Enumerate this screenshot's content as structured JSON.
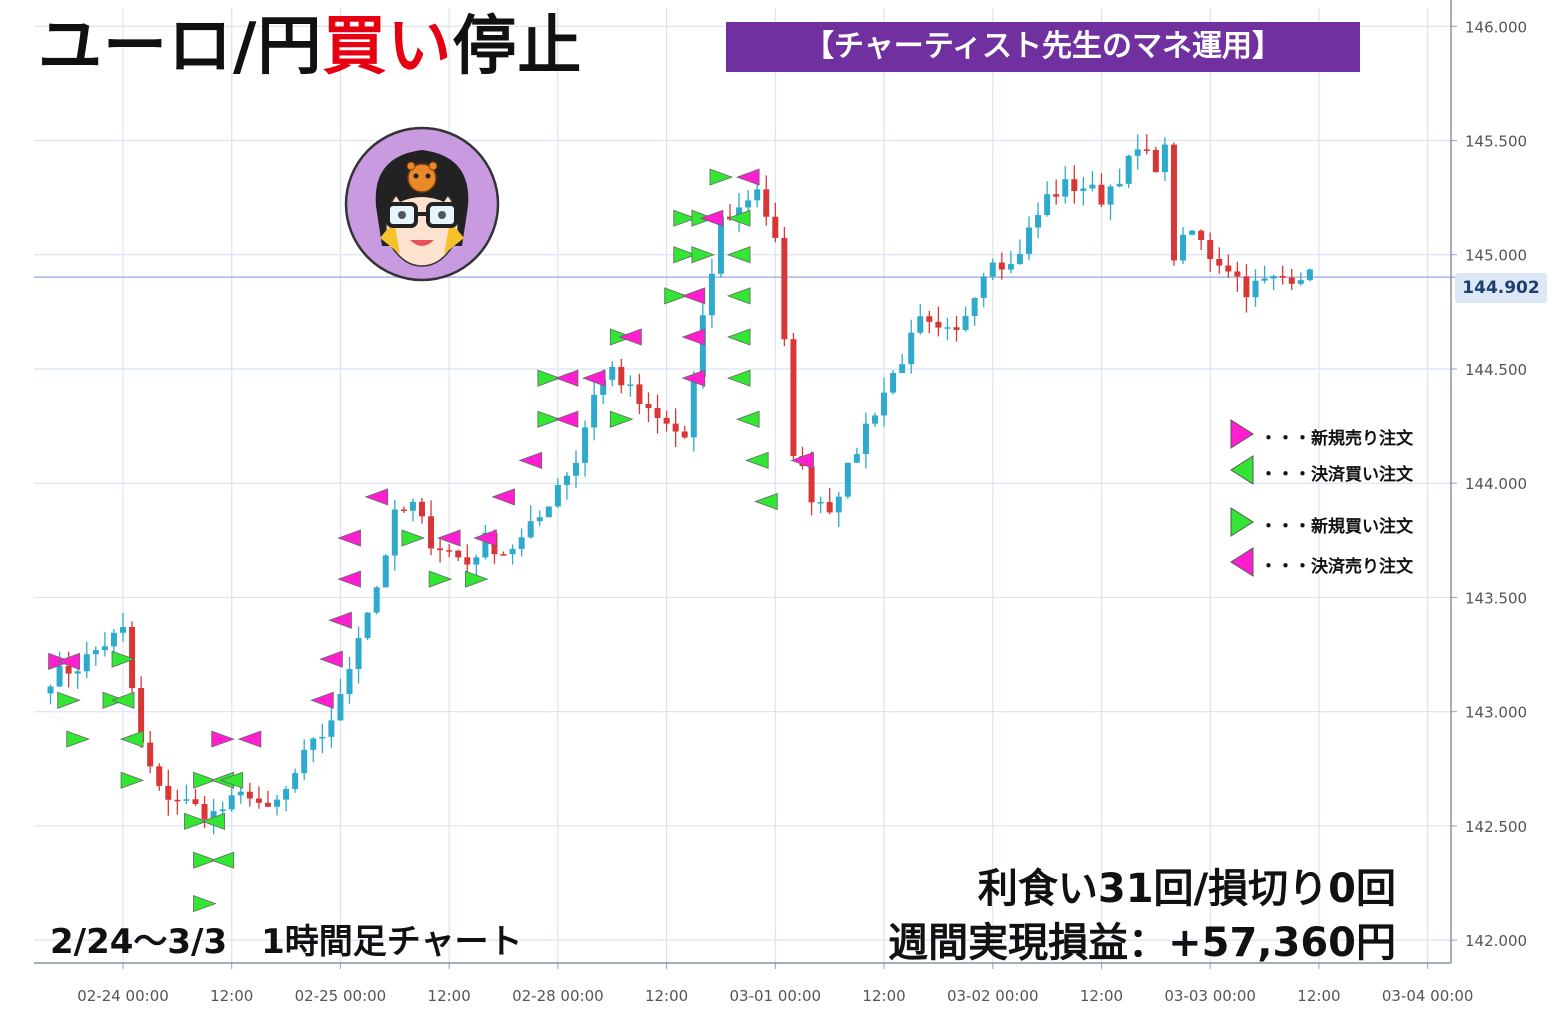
{
  "title": {
    "pair": "ユーロ/円",
    "action": "買い",
    "suffix": "停止"
  },
  "banner": "【チャーティスト先生のマネ運用】",
  "current_price": "144.902",
  "legend": [
    {
      "label": "・・・新規売り注文",
      "color": "#ff1fd0",
      "direction": "right"
    },
    {
      "label": "・・・決済買い注文",
      "color": "#33e633",
      "direction": "left"
    },
    {
      "label": "・・・新規買い注文",
      "color": "#33e633",
      "direction": "right"
    },
    {
      "label": "・・・決済売り注文",
      "color": "#ff1fd0",
      "direction": "left"
    }
  ],
  "stats": {
    "line1": "利食い31回/損切り0回",
    "line2": "週間実現損益：+57,360円"
  },
  "period": "2/24～3/3　1時間足チャート",
  "colors": {
    "up": "#2eaacc",
    "down": "#d93636",
    "grid": "#dbe3f3",
    "banner": "#7030a0",
    "accent": "#e60012"
  },
  "chart_data": {
    "type": "candlestick",
    "interval": "1h",
    "y_ticks": [
      "142.000",
      "142.500",
      "143.000",
      "143.500",
      "144.000",
      "144.500",
      "145.000",
      "145.500",
      "146.000"
    ],
    "ylim": [
      141.9,
      146.08
    ],
    "x_ticks": [
      "02-24 00:00",
      "12:00",
      "02-25 00:00",
      "12:00",
      "02-28 00:00",
      "12:00",
      "03-01 00:00",
      "12:00",
      "03-02 00:00",
      "12:00",
      "03-03 00:00",
      "12:00",
      "03-04 00:00"
    ],
    "bars_per_tick": 12,
    "start_index": -8,
    "current_price": 144.902,
    "close_path": [
      [
        -8,
        143.15
      ],
      [
        -5,
        143.2
      ],
      [
        -2,
        143.3
      ],
      [
        0,
        143.35
      ],
      [
        2,
        142.85
      ],
      [
        4,
        142.65
      ],
      [
        6,
        142.62
      ],
      [
        8,
        142.58
      ],
      [
        10,
        142.55
      ],
      [
        12,
        142.6
      ],
      [
        14,
        142.65
      ],
      [
        16,
        142.55
      ],
      [
        18,
        142.65
      ],
      [
        20,
        142.8
      ],
      [
        22,
        142.9
      ],
      [
        24,
        143.05
      ],
      [
        26,
        143.35
      ],
      [
        28,
        143.55
      ],
      [
        30,
        143.85
      ],
      [
        32,
        143.9
      ],
      [
        34,
        143.75
      ],
      [
        36,
        143.7
      ],
      [
        38,
        143.65
      ],
      [
        40,
        143.75
      ],
      [
        42,
        143.7
      ],
      [
        44,
        143.75
      ],
      [
        46,
        143.85
      ],
      [
        48,
        144.0
      ],
      [
        50,
        144.1
      ],
      [
        52,
        144.4
      ],
      [
        54,
        144.5
      ],
      [
        56,
        144.4
      ],
      [
        58,
        144.3
      ],
      [
        60,
        144.25
      ],
      [
        62,
        144.2
      ],
      [
        64,
        144.7
      ],
      [
        66,
        145.15
      ],
      [
        68,
        145.2
      ],
      [
        70,
        145.3
      ],
      [
        72,
        145.05
      ],
      [
        74,
        144.15
      ],
      [
        76,
        143.95
      ],
      [
        78,
        143.9
      ],
      [
        80,
        144.05
      ],
      [
        82,
        144.25
      ],
      [
        84,
        144.4
      ],
      [
        86,
        144.55
      ],
      [
        88,
        144.7
      ],
      [
        90,
        144.65
      ],
      [
        92,
        144.65
      ],
      [
        94,
        144.85
      ],
      [
        96,
        145.0
      ],
      [
        98,
        144.95
      ],
      [
        100,
        145.1
      ],
      [
        102,
        145.25
      ],
      [
        104,
        145.3
      ],
      [
        106,
        145.3
      ],
      [
        108,
        145.25
      ],
      [
        110,
        145.35
      ],
      [
        112,
        145.45
      ],
      [
        114,
        145.4
      ],
      [
        115,
        145.45
      ],
      [
        116,
        145.0
      ],
      [
        118,
        145.1
      ],
      [
        120,
        145.0
      ],
      [
        122,
        144.95
      ],
      [
        124,
        144.85
      ],
      [
        126,
        144.88
      ],
      [
        128,
        144.9
      ],
      [
        130,
        144.92
      ],
      [
        131,
        144.902
      ]
    ],
    "orders": [
      {
        "bar": -7,
        "price": 143.22,
        "type": "sell_new"
      },
      {
        "bar": -6,
        "price": 143.22,
        "type": "sell_close"
      },
      {
        "bar": -6,
        "price": 143.05,
        "type": "buy_new"
      },
      {
        "bar": -5,
        "price": 142.88,
        "type": "buy_new"
      },
      {
        "bar": -1,
        "price": 143.05,
        "type": "buy_new"
      },
      {
        "bar": 0,
        "price": 143.23,
        "type": "buy_new"
      },
      {
        "bar": 0,
        "price": 143.05,
        "type": "buy_close"
      },
      {
        "bar": 1,
        "price": 142.88,
        "type": "buy_close"
      },
      {
        "bar": 1,
        "price": 142.7,
        "type": "buy_new"
      },
      {
        "bar": 8,
        "price": 142.52,
        "type": "buy_new"
      },
      {
        "bar": 9,
        "price": 142.7,
        "type": "buy_new"
      },
      {
        "bar": 9,
        "price": 142.35,
        "type": "buy_new"
      },
      {
        "bar": 9,
        "price": 142.16,
        "type": "buy_new"
      },
      {
        "bar": 11,
        "price": 142.88,
        "type": "sell_new"
      },
      {
        "bar": 10,
        "price": 142.52,
        "type": "buy_close"
      },
      {
        "bar": 11,
        "price": 142.7,
        "type": "buy_close"
      },
      {
        "bar": 11,
        "price": 142.35,
        "type": "buy_close"
      },
      {
        "bar": 12,
        "price": 142.7,
        "type": "buy_close"
      },
      {
        "bar": 14,
        "price": 142.88,
        "type": "sell_close"
      },
      {
        "bar": 22,
        "price": 143.05,
        "type": "sell_close"
      },
      {
        "bar": 23,
        "price": 143.23,
        "type": "sell_close"
      },
      {
        "bar": 24,
        "price": 143.4,
        "type": "sell_close"
      },
      {
        "bar": 25,
        "price": 143.58,
        "type": "sell_close"
      },
      {
        "bar": 25,
        "price": 143.76,
        "type": "sell_close"
      },
      {
        "bar": 28,
        "price": 143.94,
        "type": "sell_close"
      },
      {
        "bar": 32,
        "price": 143.76,
        "type": "buy_new"
      },
      {
        "bar": 35,
        "price": 143.58,
        "type": "buy_new"
      },
      {
        "bar": 36,
        "price": 143.76,
        "type": "sell_close"
      },
      {
        "bar": 39,
        "price": 143.58,
        "type": "buy_new"
      },
      {
        "bar": 40,
        "price": 143.76,
        "type": "sell_close"
      },
      {
        "bar": 42,
        "price": 143.94,
        "type": "sell_close"
      },
      {
        "bar": 45,
        "price": 144.1,
        "type": "sell_close"
      },
      {
        "bar": 47,
        "price": 144.28,
        "type": "buy_new"
      },
      {
        "bar": 47,
        "price": 144.46,
        "type": "buy_new"
      },
      {
        "bar": 49,
        "price": 144.46,
        "type": "sell_close"
      },
      {
        "bar": 49,
        "price": 144.28,
        "type": "sell_close"
      },
      {
        "bar": 52,
        "price": 144.46,
        "type": "sell_close"
      },
      {
        "bar": 55,
        "price": 144.64,
        "type": "buy_new"
      },
      {
        "bar": 56,
        "price": 144.64,
        "type": "sell_close"
      },
      {
        "bar": 55,
        "price": 144.28,
        "type": "buy_new"
      },
      {
        "bar": 61,
        "price": 144.82,
        "type": "buy_new"
      },
      {
        "bar": 62,
        "price": 145.0,
        "type": "buy_new"
      },
      {
        "bar": 62,
        "price": 145.16,
        "type": "buy_new"
      },
      {
        "bar": 63,
        "price": 144.46,
        "type": "sell_close"
      },
      {
        "bar": 63,
        "price": 144.64,
        "type": "sell_close"
      },
      {
        "bar": 63,
        "price": 144.82,
        "type": "sell_close"
      },
      {
        "bar": 64,
        "price": 145.0,
        "type": "buy_new"
      },
      {
        "bar": 64,
        "price": 145.16,
        "type": "buy_new"
      },
      {
        "bar": 65,
        "price": 145.16,
        "type": "sell_close"
      },
      {
        "bar": 66,
        "price": 145.34,
        "type": "buy_new"
      },
      {
        "bar": 68,
        "price": 145.16,
        "type": "buy_close"
      },
      {
        "bar": 68,
        "price": 145.0,
        "type": "buy_close"
      },
      {
        "bar": 68,
        "price": 144.82,
        "type": "buy_close"
      },
      {
        "bar": 68,
        "price": 144.64,
        "type": "buy_close"
      },
      {
        "bar": 68,
        "price": 144.46,
        "type": "buy_close"
      },
      {
        "bar": 69,
        "price": 145.34,
        "type": "sell_close"
      },
      {
        "bar": 69,
        "price": 144.28,
        "type": "buy_close"
      },
      {
        "bar": 70,
        "price": 144.1,
        "type": "buy_close"
      },
      {
        "bar": 71,
        "price": 143.92,
        "type": "buy_close"
      },
      {
        "bar": 75,
        "price": 144.1,
        "type": "sell_close"
      }
    ]
  }
}
